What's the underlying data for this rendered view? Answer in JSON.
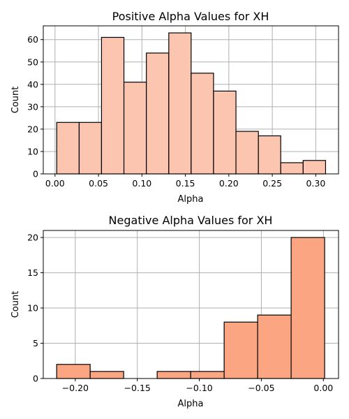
{
  "chart_data": [
    {
      "type": "bar",
      "title": "Positive Alpha Values for XH",
      "xlabel": "Alpha",
      "ylabel": "Count",
      "color": "#fcc5b0",
      "xlim": [
        -0.0135,
        0.3262
      ],
      "ylim": [
        0,
        66.15
      ],
      "grid": true,
      "xticks": [
        0.0,
        0.05,
        0.1,
        0.15,
        0.2,
        0.25,
        0.3
      ],
      "xtick_labels": [
        "0.00",
        "0.05",
        "0.10",
        "0.15",
        "0.20",
        "0.25",
        "0.30"
      ],
      "yticks": [
        0,
        10,
        20,
        30,
        40,
        50,
        60
      ],
      "ytick_labels": [
        "0",
        "10",
        "20",
        "30",
        "40",
        "50",
        "60"
      ],
      "bins": [
        {
          "x0": 0.002,
          "x1": 0.0278,
          "value": 23
        },
        {
          "x0": 0.0278,
          "x1": 0.0535,
          "value": 23
        },
        {
          "x0": 0.0535,
          "x1": 0.0793,
          "value": 61
        },
        {
          "x0": 0.0793,
          "x1": 0.1051,
          "value": 41
        },
        {
          "x0": 0.1051,
          "x1": 0.1309,
          "value": 54
        },
        {
          "x0": 0.1309,
          "x1": 0.1566,
          "value": 63
        },
        {
          "x0": 0.1566,
          "x1": 0.1824,
          "value": 45
        },
        {
          "x0": 0.1824,
          "x1": 0.2082,
          "value": 37
        },
        {
          "x0": 0.2082,
          "x1": 0.234,
          "value": 19
        },
        {
          "x0": 0.234,
          "x1": 0.2597,
          "value": 17
        },
        {
          "x0": 0.2597,
          "x1": 0.2855,
          "value": 5
        },
        {
          "x0": 0.2855,
          "x1": 0.3113,
          "value": 6
        }
      ]
    },
    {
      "type": "bar",
      "title": "Negative Alpha Values for XH",
      "xlabel": "Alpha",
      "ylabel": "Count",
      "color": "#fca582",
      "xlim": [
        -0.2258,
        0.0122
      ],
      "ylim": [
        0,
        21.0
      ],
      "grid": true,
      "xticks": [
        -0.2,
        -0.15,
        -0.1,
        -0.05,
        0.0
      ],
      "xtick_labels": [
        "−0.20",
        "−0.15",
        "−0.10",
        "−0.05",
        "0.00"
      ],
      "yticks": [
        0,
        5,
        10,
        15,
        20
      ],
      "ytick_labels": [
        "0",
        "5",
        "10",
        "15",
        "20"
      ],
      "bins": [
        {
          "x0": -0.215,
          "x1": -0.188,
          "value": 2
        },
        {
          "x0": -0.188,
          "x1": -0.161,
          "value": 1
        },
        {
          "x0": -0.161,
          "x1": -0.134,
          "value": 0
        },
        {
          "x0": -0.134,
          "x1": -0.107,
          "value": 1
        },
        {
          "x0": -0.107,
          "x1": -0.08,
          "value": 1
        },
        {
          "x0": -0.08,
          "x1": -0.053,
          "value": 8
        },
        {
          "x0": -0.053,
          "x1": -0.026,
          "value": 9
        },
        {
          "x0": -0.026,
          "x1": 0.001,
          "value": 20
        }
      ]
    }
  ]
}
